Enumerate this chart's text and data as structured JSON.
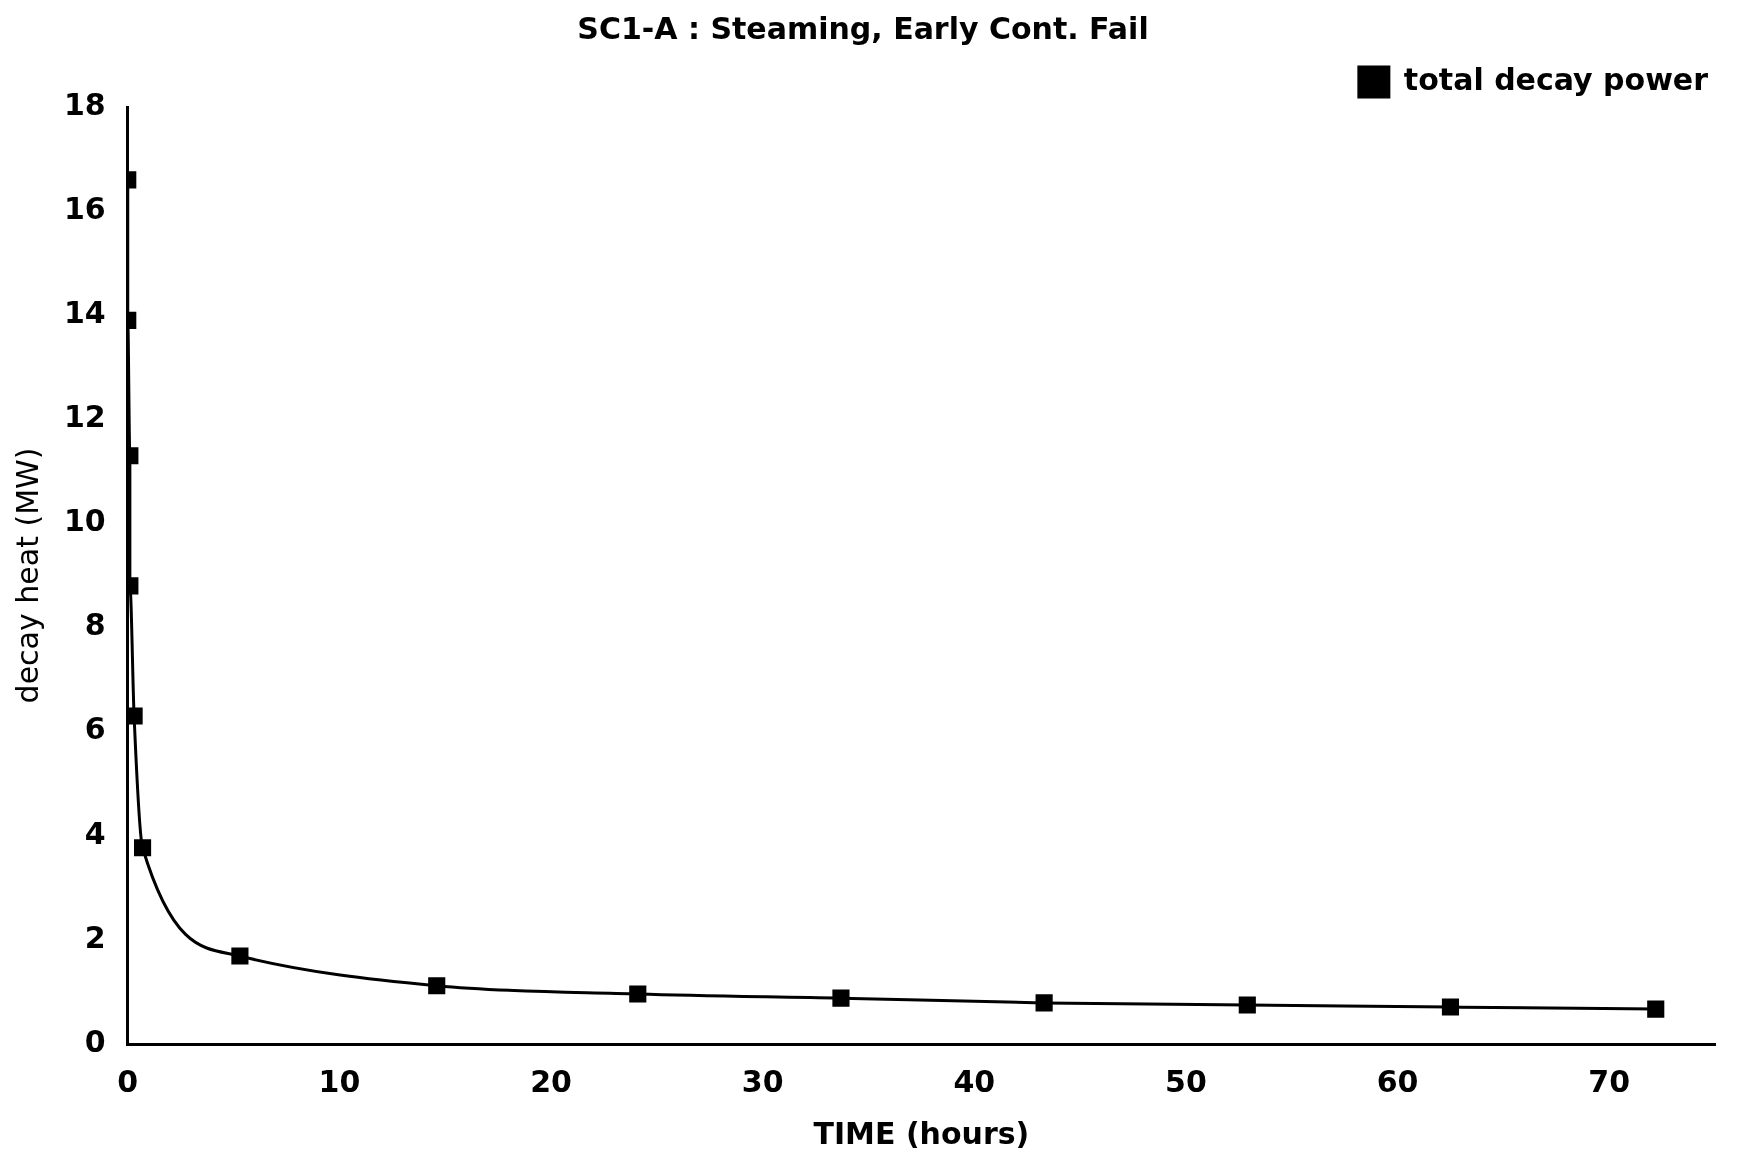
{
  "chart_data": {
    "type": "line",
    "title": "SC1-A : Steaming, Early Cont. Fail",
    "xlabel": "TIME (hours)",
    "ylabel": "decay heat (MW)",
    "series": [
      {
        "name": "total decay power",
        "color": "#000000",
        "x": [
          0,
          0,
          0.1,
          0.1,
          0.3,
          0.7,
          5.3,
          14.6,
          24.1,
          33.7,
          43.3,
          52.9,
          62.5,
          72.2
        ],
        "values": [
          16.6,
          13.9,
          11.3,
          8.8,
          6.3,
          3.77,
          1.69,
          1.12,
          0.96,
          0.88,
          0.79,
          0.75,
          0.71,
          0.67
        ]
      }
    ],
    "xlim": [
      0,
      75
    ],
    "xticks": [
      0,
      10,
      20,
      30,
      40,
      50,
      60,
      70
    ],
    "ylim": [
      0,
      18
    ],
    "yticks": [
      0,
      2,
      4,
      6,
      8,
      10,
      12,
      14,
      16,
      18
    ],
    "grid": false,
    "legend": "top right",
    "marker": "square",
    "line_style": "solid"
  }
}
